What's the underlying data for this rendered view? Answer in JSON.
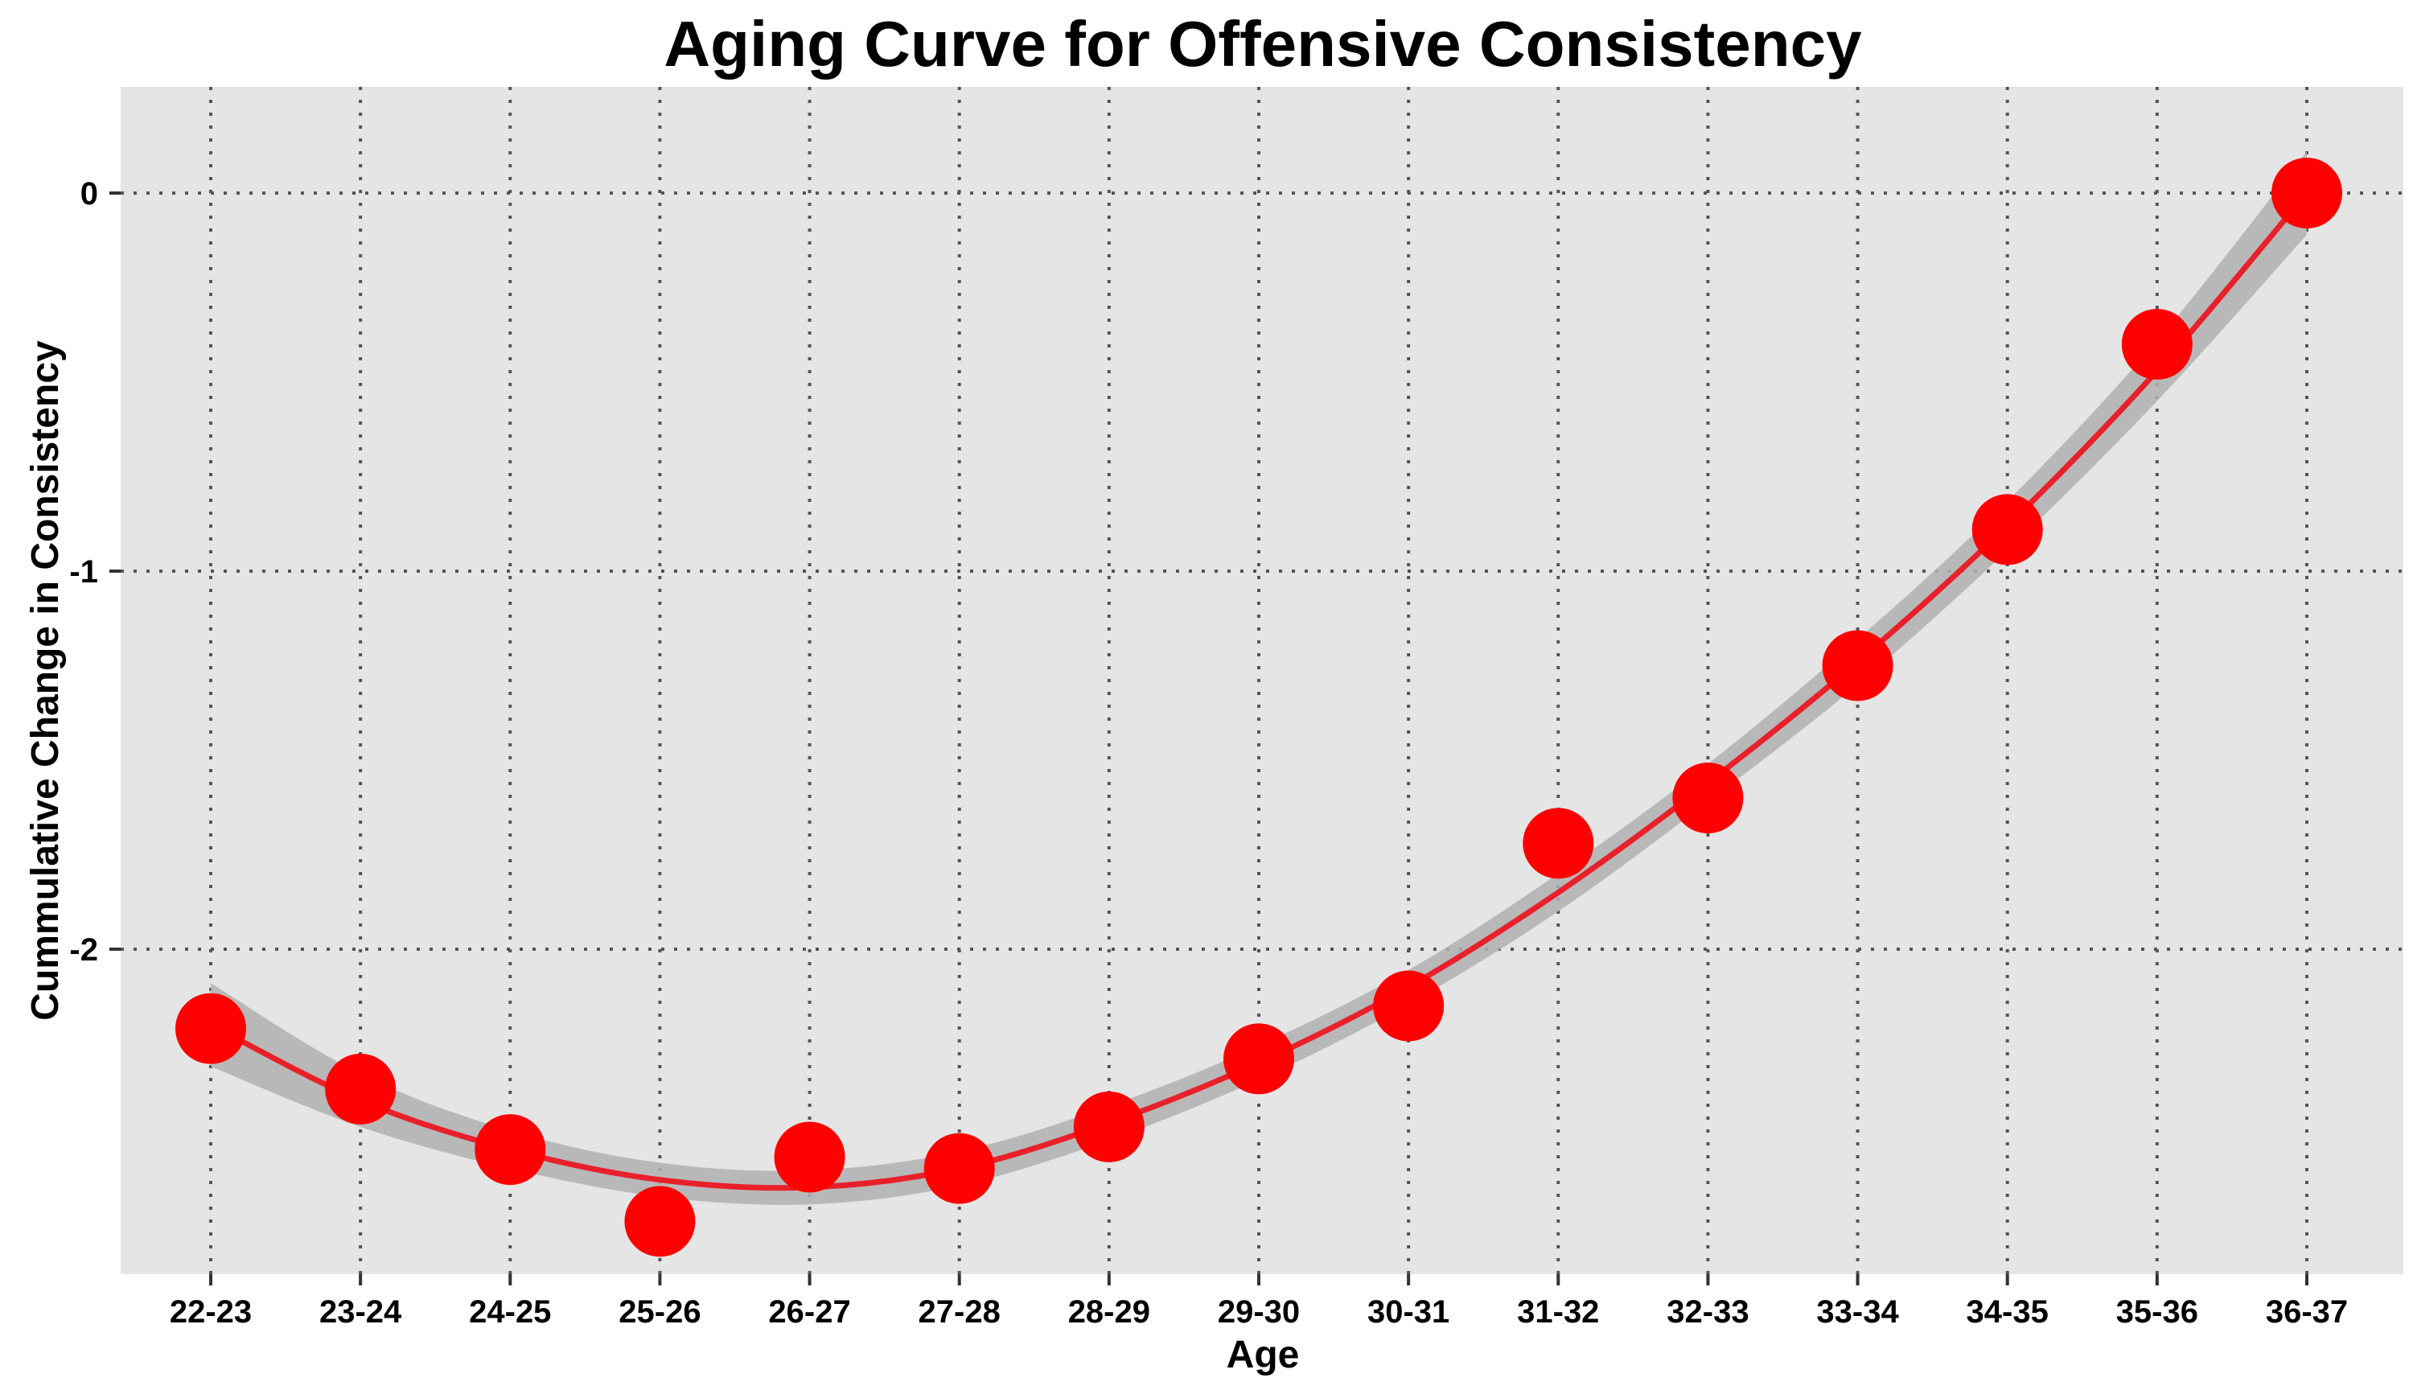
{
  "chart_data": {
    "type": "scatter",
    "title": "Aging Curve for Offensive Consistency",
    "xlabel": "Age",
    "ylabel": "Cummulative Change in Consistency",
    "categories": [
      "22-23",
      "23-24",
      "24-25",
      "25-26",
      "26-27",
      "27-28",
      "28-29",
      "29-30",
      "30-31",
      "31-32",
      "32-33",
      "33-34",
      "34-35",
      "35-36",
      "36-37"
    ],
    "series": [
      {
        "kind": "points",
        "values": [
          -2.21,
          -2.37,
          -2.53,
          -2.72,
          -2.55,
          -2.58,
          -2.47,
          -2.29,
          -2.15,
          -1.72,
          -1.6,
          -1.25,
          -0.89,
          -0.4,
          0.0
        ]
      },
      {
        "kind": "smoothed-fit",
        "values": [
          -2.2,
          -2.4,
          -2.53,
          -2.61,
          -2.63,
          -2.58,
          -2.46,
          -2.3,
          -2.1,
          -1.85,
          -1.56,
          -1.24,
          -0.88,
          -0.47,
          0.0
        ]
      }
    ],
    "confidence_band_halfwidth": [
      0.11,
      0.07,
      0.05,
      0.045,
      0.045,
      0.045,
      0.045,
      0.045,
      0.045,
      0.05,
      0.05,
      0.06,
      0.065,
      0.08,
      0.11
    ],
    "yticks": [
      0,
      -1,
      -2
    ],
    "ylim": [
      -2.85,
      0.27
    ],
    "grid": true,
    "colors": {
      "points": "#ff0000",
      "line": "#e8202a",
      "band": "#b0b0b0",
      "panel": "#e5e5e5",
      "grid": "#555555"
    }
  }
}
